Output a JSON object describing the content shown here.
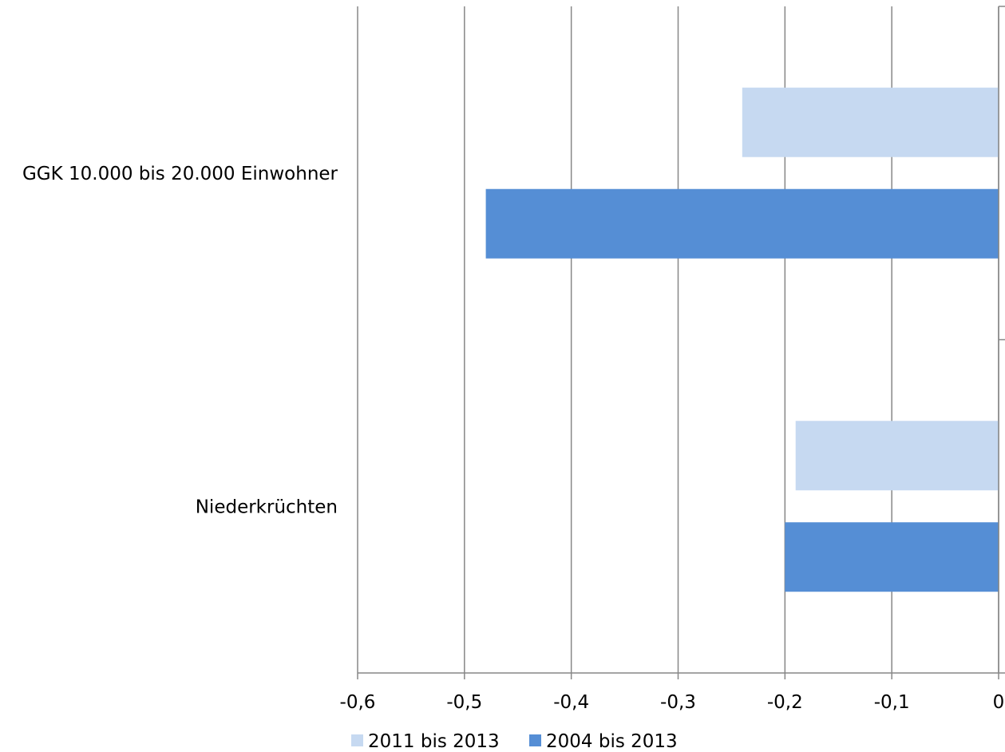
{
  "chart_data": {
    "type": "bar",
    "orientation": "horizontal",
    "categories": [
      "GGK 10.000 bis 20.000 Einwohner",
      "Niederkrüchten"
    ],
    "series": [
      {
        "name": "2011 bis 2013",
        "color": "#c6d9f1",
        "values": [
          -0.24,
          -0.19
        ]
      },
      {
        "name": "2004 bis 2013",
        "color": "#558ed5",
        "values": [
          -0.48,
          -0.2
        ]
      }
    ],
    "x_ticks": [
      "-0,6",
      "-0,5",
      "-0,4",
      "-0,3",
      "-0,2",
      "-0,1",
      "0"
    ],
    "x_tick_values": [
      -0.6,
      -0.5,
      -0.4,
      -0.3,
      -0.2,
      -0.1,
      0
    ],
    "xlim": [
      -0.6,
      0
    ],
    "grid": true,
    "legend_position": "bottom"
  }
}
